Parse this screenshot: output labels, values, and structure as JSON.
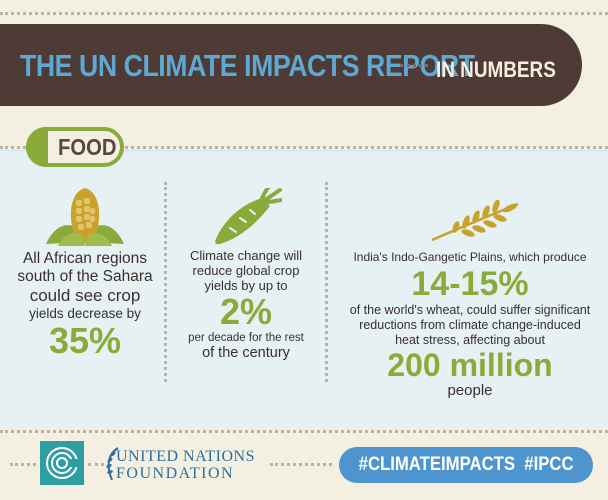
{
  "header": {
    "title": "THE UN CLIMATE IMPACTS REPORT",
    "subtitle": "IN NUMBERS"
  },
  "section": {
    "label": "FOOD"
  },
  "columns": [
    {
      "icon": "corn-icon",
      "line1": "All African regions",
      "line2": "south of the Sahara",
      "line3": "could see crop",
      "line4": "yields decrease by",
      "stat": "35%"
    },
    {
      "icon": "carrot-icon",
      "line1": "Climate change will",
      "line2": "reduce global crop",
      "line3": "yields by up to",
      "stat": "2%",
      "line4": "per decade for the rest",
      "line5": "of the century"
    },
    {
      "icon": "wheat-icon",
      "line1": "India's Indo-Gangetic Plains, which produce",
      "stat1": "14-15%",
      "line2": "of the world's wheat, could suffer significant",
      "line3": "reductions from climate change-induced",
      "line4": "heat stress, affecting about",
      "stat2": "200 million",
      "line5": "people"
    }
  ],
  "footer": {
    "logo": "ipcc-logo-icon",
    "org_line1": "UNITED NATIONS",
    "org_line2": "FOUNDATION",
    "hashtags": "#CLIMATEIMPACTS  #IPCC"
  },
  "colors": {
    "background": "#f3efe1",
    "header_bg": "#4f3b36",
    "title": "#5ea8d4",
    "accent_green": "#8aab3a",
    "panel": "#e6f1f3",
    "hashtag_bg": "#4e95cf",
    "logo_teal": "#2f9ea2"
  }
}
